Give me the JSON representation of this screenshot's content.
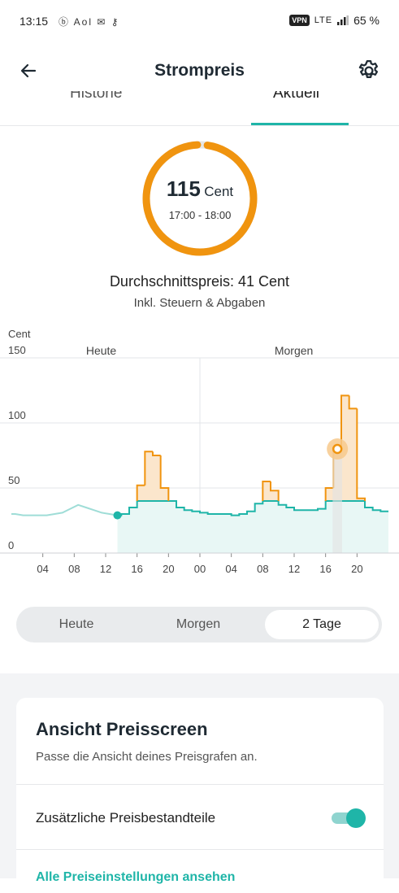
{
  "status_bar": {
    "time": "13:15",
    "notification_icons": "ⓑ Aol ✉ ⚷",
    "vpn": "VPN",
    "network": "LTE",
    "battery": "65 %"
  },
  "app_bar": {
    "title": "Strompreis"
  },
  "tabs": [
    {
      "label": "Historie",
      "selected": false
    },
    {
      "label": "Aktuell",
      "selected": true
    }
  ],
  "current_price": {
    "value": "115",
    "unit": "Cent",
    "time_range": "17:00 - 18:00",
    "gauge_fraction": 0.97
  },
  "average": {
    "label": "Durchschnittspreis: 41 Cent",
    "sublabel": "Inkl. Steuern & Abgaben"
  },
  "colors": {
    "accent": "#1fb5a8",
    "highlight": "#f0940f",
    "text_dark": "#1f2a33"
  },
  "chart_data": {
    "type": "line",
    "ylabel": "Cent",
    "ylim": [
      0,
      150
    ],
    "yticks": [
      "0",
      "50",
      "100",
      "150"
    ],
    "xticks": [
      "04",
      "08",
      "12",
      "16",
      "20",
      "00",
      "04",
      "08",
      "12",
      "16",
      "20"
    ],
    "section_labels": [
      "Heute",
      "Morgen"
    ],
    "grid": true,
    "selected_hour": 17,
    "current_hour": 13,
    "series": [
      {
        "x": [
          0,
          1,
          2,
          3,
          4,
          5,
          6,
          7,
          8,
          9,
          10,
          11,
          12,
          13,
          14,
          15,
          16,
          17,
          18,
          19,
          20,
          21,
          22,
          23,
          24,
          25,
          26,
          27,
          28,
          29,
          30,
          31,
          32,
          33,
          34,
          35,
          36,
          37,
          38,
          39,
          40,
          41,
          42,
          43,
          44,
          45,
          46,
          47
        ],
        "values": [
          30,
          29,
          29,
          29,
          29,
          30,
          31,
          34,
          37,
          35,
          33,
          31,
          30,
          29,
          30,
          35,
          52,
          78,
          75,
          50,
          40,
          35,
          33,
          32,
          31,
          30,
          30,
          30,
          29,
          30,
          32,
          38,
          55,
          48,
          37,
          35,
          33,
          33,
          33,
          34,
          50,
          80,
          121,
          111,
          42,
          35,
          33,
          32
        ]
      }
    ]
  },
  "range_selector": {
    "options": [
      "Heute",
      "Morgen",
      "2 Tage"
    ],
    "selected": "2 Tage"
  },
  "settings_card": {
    "title": "Ansicht Preisscreen",
    "subtitle": "Passe die Ansicht deines Preisgrafen an.",
    "toggle_label": "Zusätzliche Preisbestandteile",
    "toggle_on": true,
    "link": "Alle Preiseinstellungen ansehen"
  }
}
